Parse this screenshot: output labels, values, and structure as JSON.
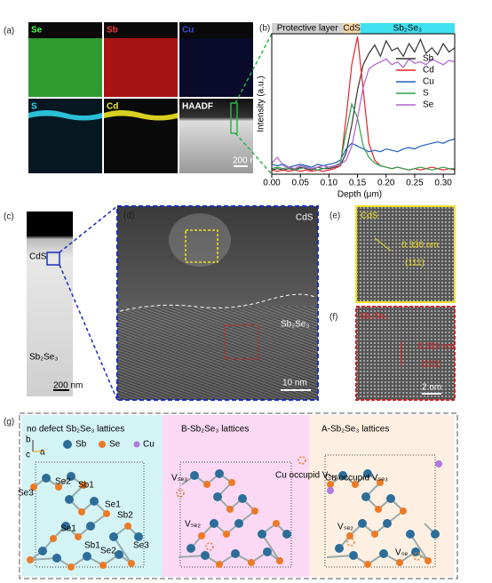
{
  "panels": {
    "a": {
      "label": "(a)",
      "maps": [
        "Se",
        "Sb",
        "Cu",
        "S",
        "Cd",
        "HAADF"
      ],
      "scale_bar": "200 nm"
    },
    "c": {
      "label": "(c)",
      "layers": [
        "CdS",
        "Sb₂Se₃"
      ],
      "scale_bar": "200 nm"
    },
    "d": {
      "label": "(d)",
      "top": "CdS",
      "bottom": "Sb₂Se₃",
      "scale_bar": "10 nm"
    },
    "e": {
      "label": "(e)",
      "phase": "CdS",
      "spacing": "0.330 nm",
      "plane": "(111)"
    },
    "f": {
      "label": "(f)",
      "phase": "Sb₂Se₃",
      "spacing": "0.319 nm",
      "plane": "(211)",
      "scale_bar": "2 nm"
    },
    "g": {
      "label": "(g)",
      "legend": [
        "Sb",
        "Se",
        "Cu"
      ],
      "axes": [
        "b",
        "c",
        "a"
      ],
      "sections": [
        {
          "title": "no defect Sb₂Se₃ lattices",
          "labels": [
            "Se3",
            "Se2",
            "Sb1",
            "Se1",
            "Sb2",
            "Se1",
            "Sb1",
            "Se2",
            "Se3"
          ]
        },
        {
          "title": "B-Sb₂Se₃ lattices",
          "labels": [
            "Vₛₑ₃",
            "Cu occupid Vₛₑ₃",
            "Vₛₑ₂"
          ]
        },
        {
          "title": "A-Sb₂Se₃ lattices",
          "labels": [
            "Cu occupid Vₛₑ₃",
            "Vₛₑ₂",
            "Vₛₑ"
          ]
        }
      ]
    }
  },
  "chart_data": {
    "type": "line",
    "label": "(b)",
    "x_label": "Depth (μm)",
    "y_label": "Intensity (a.u.)",
    "layers": [
      {
        "name": "Protective layer",
        "start": 0,
        "end": 0.125,
        "color": "#cfcfcf"
      },
      {
        "name": "CdS",
        "start": 0.125,
        "end": 0.155,
        "color": "#f5d9a8"
      },
      {
        "name": "Sb₂Se₃",
        "start": 0.155,
        "end": 0.32,
        "color": "#3fe0f0"
      }
    ],
    "xlim": [
      0,
      0.32
    ],
    "ylim": [
      0,
      1
    ],
    "xticks": [
      {
        "value": 0,
        "label": "0.00"
      },
      {
        "value": 0.05,
        "label": "0.05"
      },
      {
        "value": 0.1,
        "label": "0.10"
      },
      {
        "value": 0.15,
        "label": "0.15"
      },
      {
        "value": 0.2,
        "label": "0.20"
      },
      {
        "value": 0.25,
        "label": "0.25"
      },
      {
        "value": 0.3,
        "label": "0.30"
      }
    ],
    "x": [
      0,
      0.01,
      0.02,
      0.03,
      0.04,
      0.05,
      0.06,
      0.07,
      0.08,
      0.09,
      0.1,
      0.11,
      0.12,
      0.13,
      0.14,
      0.15,
      0.16,
      0.17,
      0.18,
      0.19,
      0.2,
      0.21,
      0.22,
      0.23,
      0.24,
      0.25,
      0.26,
      0.27,
      0.28,
      0.29,
      0.3,
      0.31,
      0.32
    ],
    "legend": "upper right",
    "series": [
      {
        "name": "Sb",
        "color": "#333333",
        "values": [
          0.03,
          0.04,
          0.03,
          0.04,
          0.03,
          0.05,
          0.04,
          0.03,
          0.05,
          0.04,
          0.04,
          0.05,
          0.06,
          0.15,
          0.35,
          0.6,
          0.78,
          0.86,
          0.92,
          0.84,
          0.95,
          0.88,
          0.9,
          0.84,
          0.93,
          0.87,
          0.96,
          0.86,
          0.9,
          0.85,
          0.93,
          0.87,
          0.9
        ]
      },
      {
        "name": "Cd",
        "color": "#e8202a",
        "values": [
          0.03,
          0.02,
          0.03,
          0.02,
          0.03,
          0.02,
          0.03,
          0.02,
          0.03,
          0.02,
          0.03,
          0.04,
          0.06,
          0.4,
          0.78,
          0.98,
          0.6,
          0.22,
          0.1,
          0.06,
          0.05,
          0.04,
          0.05,
          0.04,
          0.03,
          0.04,
          0.03,
          0.04,
          0.05,
          0.04,
          0.03,
          0.04,
          0.03
        ]
      },
      {
        "name": "Cu",
        "color": "#1f5fbf",
        "values": [
          0.07,
          0.06,
          0.07,
          0.05,
          0.06,
          0.07,
          0.06,
          0.05,
          0.07,
          0.06,
          0.07,
          0.08,
          0.1,
          0.18,
          0.22,
          0.2,
          0.18,
          0.16,
          0.17,
          0.16,
          0.18,
          0.17,
          0.16,
          0.18,
          0.19,
          0.18,
          0.2,
          0.21,
          0.22,
          0.23,
          0.22,
          0.24,
          0.25
        ]
      },
      {
        "name": "S",
        "color": "#2aa04a",
        "values": [
          0.04,
          0.05,
          0.04,
          0.05,
          0.03,
          0.04,
          0.05,
          0.04,
          0.03,
          0.04,
          0.05,
          0.06,
          0.08,
          0.3,
          0.5,
          0.4,
          0.2,
          0.12,
          0.08,
          0.06,
          0.05,
          0.04,
          0.05,
          0.04,
          0.03,
          0.04,
          0.05,
          0.04,
          0.03,
          0.04,
          0.05,
          0.04,
          0.04
        ]
      },
      {
        "name": "Se",
        "color": "#b060d0",
        "values": [
          0.08,
          0.12,
          0.06,
          0.05,
          0.04,
          0.06,
          0.05,
          0.04,
          0.05,
          0.06,
          0.05,
          0.06,
          0.07,
          0.1,
          0.2,
          0.4,
          0.62,
          0.75,
          0.78,
          0.8,
          0.82,
          0.78,
          0.8,
          0.76,
          0.82,
          0.79,
          0.8,
          0.78,
          0.82,
          0.8,
          0.78,
          0.81,
          0.8
        ]
      }
    ]
  }
}
